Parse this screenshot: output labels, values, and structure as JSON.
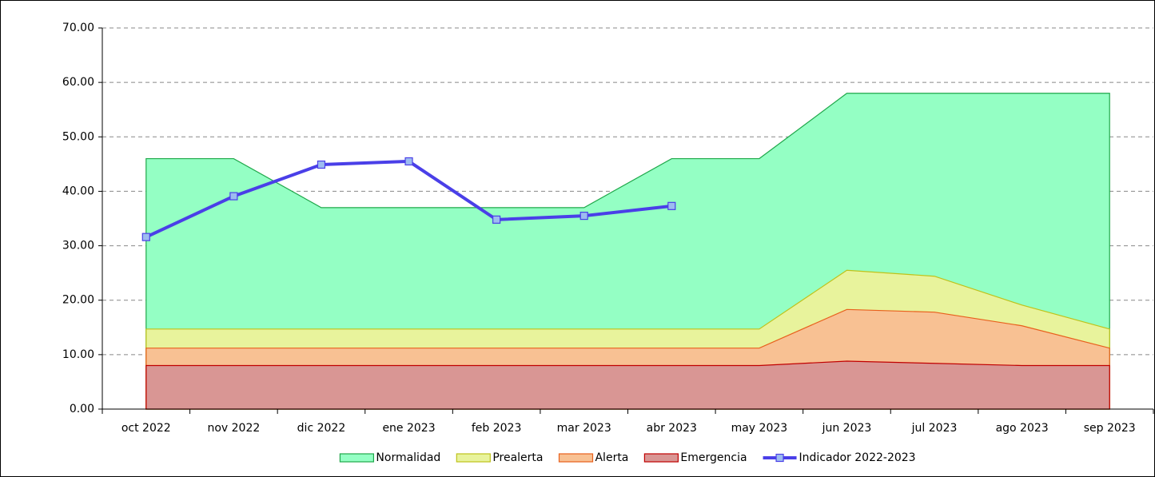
{
  "chart_data": {
    "type": "area",
    "categories": [
      "oct 2022",
      "nov 2022",
      "dic 2022",
      "ene 2023",
      "feb 2023",
      "mar 2023",
      "abr 2023",
      "may 2023",
      "jun 2023",
      "jul 2023",
      "ago 2023",
      "sep 2023"
    ],
    "series": [
      {
        "name": "Normalidad",
        "type": "area",
        "color": "#94ffc4",
        "stroke": "#1fa84a",
        "values": [
          46,
          46,
          37,
          37,
          37,
          37,
          46,
          46,
          58,
          58,
          58,
          58
        ]
      },
      {
        "name": "Prealerta",
        "type": "area",
        "color": "#e8f39c",
        "stroke": "#bfc21a",
        "values": [
          14.7,
          14.7,
          14.7,
          14.7,
          14.7,
          14.7,
          14.7,
          14.7,
          25.5,
          24.4,
          19.1,
          14.7
        ]
      },
      {
        "name": "Alerta",
        "type": "area",
        "color": "#f8c193",
        "stroke": "#e8601c",
        "values": [
          11.2,
          11.2,
          11.2,
          11.2,
          11.2,
          11.2,
          11.2,
          11.2,
          18.3,
          17.8,
          15.3,
          11.2
        ]
      },
      {
        "name": "Emergencia",
        "type": "area",
        "color": "#d99694",
        "stroke": "#c00000",
        "values": [
          8,
          8,
          8,
          8,
          8,
          8,
          8,
          8,
          8.8,
          8.4,
          8,
          8
        ]
      },
      {
        "name": "Indicador 2022-2023",
        "type": "line",
        "color": "#4a3fe8",
        "marker_color": "#9dbcf0",
        "values": [
          31.6,
          39.1,
          44.9,
          45.5,
          34.8,
          35.5,
          37.3,
          null,
          null,
          null,
          null,
          null
        ]
      }
    ],
    "ylim": [
      0,
      70
    ],
    "yticks": [
      {
        "value": 0,
        "label": "0.00"
      },
      {
        "value": 10,
        "label": "10.00"
      },
      {
        "value": 20,
        "label": "20.00"
      },
      {
        "value": 30,
        "label": "30.00"
      },
      {
        "value": 40,
        "label": "40.00"
      },
      {
        "value": 50,
        "label": "50.00"
      },
      {
        "value": 60,
        "label": "60.00"
      },
      {
        "value": 70,
        "label": "70.00"
      }
    ],
    "grid": true,
    "legend": "bottom"
  }
}
